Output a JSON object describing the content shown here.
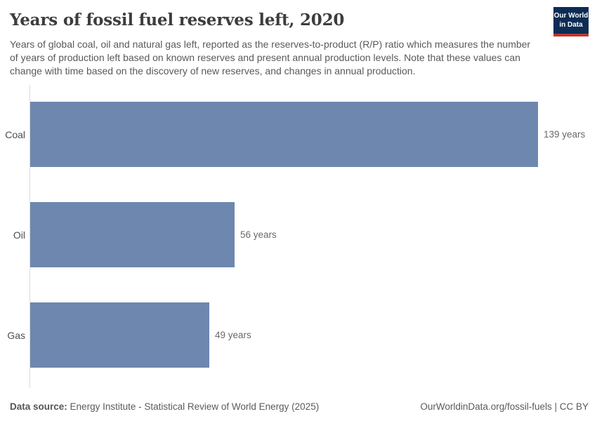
{
  "header": {
    "title": "Years of fossil fuel reserves left, 2020",
    "subtitle": "Years of global coal, oil and natural gas left, reported as the reserves-to-product (R/P) ratio which measures the number of years of production left based on known reserves and present annual production levels. Note that these values can change with time based on the discovery of new reserves, and changes in annual production."
  },
  "logo": {
    "line1": "Our World",
    "line2": "in Data",
    "bg_color": "#0d2c54",
    "accent_color": "#be362e"
  },
  "chart_data": {
    "type": "bar",
    "orientation": "horizontal",
    "title": "Years of fossil fuel reserves left, 2020",
    "categories": [
      "Coal",
      "Oil",
      "Gas"
    ],
    "values": [
      139,
      56,
      49
    ],
    "value_labels": [
      "139 years",
      "56 years",
      "49 years"
    ],
    "xlabel": "",
    "ylabel": "",
    "xlim": [
      0,
      139
    ],
    "grid": false,
    "legend": false,
    "bar_color": "#6e87af",
    "axis_color": "#dcdcdc"
  },
  "footer": {
    "source_label": "Data source:",
    "source_text": "Energy Institute - Statistical Review of World Energy (2025)",
    "license": "OurWorldinData.org/fossil-fuels | CC BY"
  }
}
